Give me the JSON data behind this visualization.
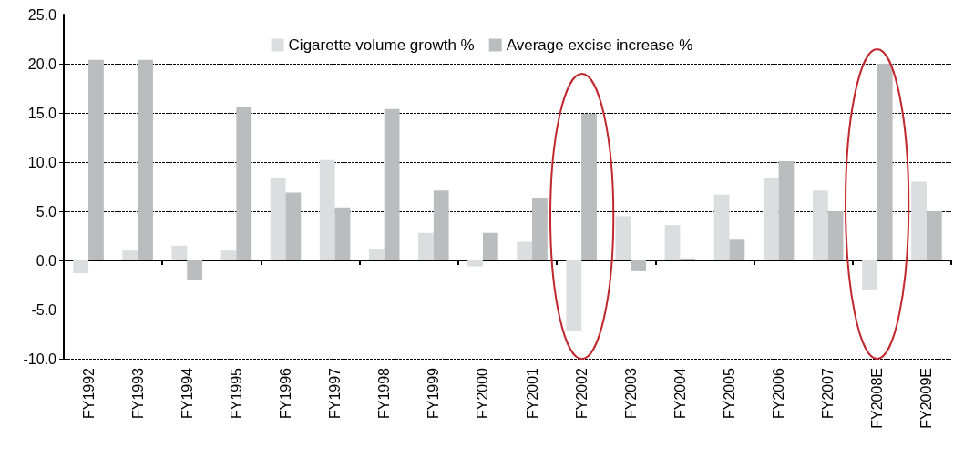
{
  "chart_data": {
    "type": "bar",
    "categories": [
      "FY1992",
      "FY1993",
      "FY1994",
      "FY1995",
      "FY1996",
      "FY1997",
      "FY1998",
      "FY1999",
      "FY2000",
      "FY2001",
      "FY2002",
      "FY2003",
      "FY2004",
      "FY2005",
      "FY2006",
      "FY2007",
      "FY2008E",
      "FY2009E"
    ],
    "series": [
      {
        "name": "Cigarette volume growth %",
        "color": "#dcdddf",
        "values": [
          -1.3,
          1.0,
          1.5,
          1.0,
          8.4,
          10.2,
          1.2,
          2.8,
          -0.6,
          1.9,
          -7.2,
          4.5,
          3.6,
          6.7,
          8.4,
          7.1,
          -3.0,
          8.0
        ]
      },
      {
        "name": "Average excise increase %",
        "color": "#bbbcbe",
        "values": [
          20.4,
          20.4,
          -2.0,
          15.6,
          6.9,
          5.4,
          15.4,
          7.1,
          2.8,
          6.4,
          14.9,
          -1.1,
          0.2,
          2.1,
          10.1,
          5.0,
          20.0,
          5.0
        ]
      }
    ],
    "ylim": [
      -10,
      25
    ],
    "yticks": [
      {
        "value": -10,
        "label": "-10.0"
      },
      {
        "value": -5,
        "label": "-5.0"
      },
      {
        "value": 0,
        "label": "0.0"
      },
      {
        "value": 5,
        "label": "5.0"
      },
      {
        "value": 10,
        "label": "10.0"
      },
      {
        "value": 15,
        "label": "15.0"
      },
      {
        "value": 20,
        "label": "20.0"
      },
      {
        "value": 25,
        "label": "25.0"
      }
    ],
    "grid": "y",
    "legend": "top"
  }
}
